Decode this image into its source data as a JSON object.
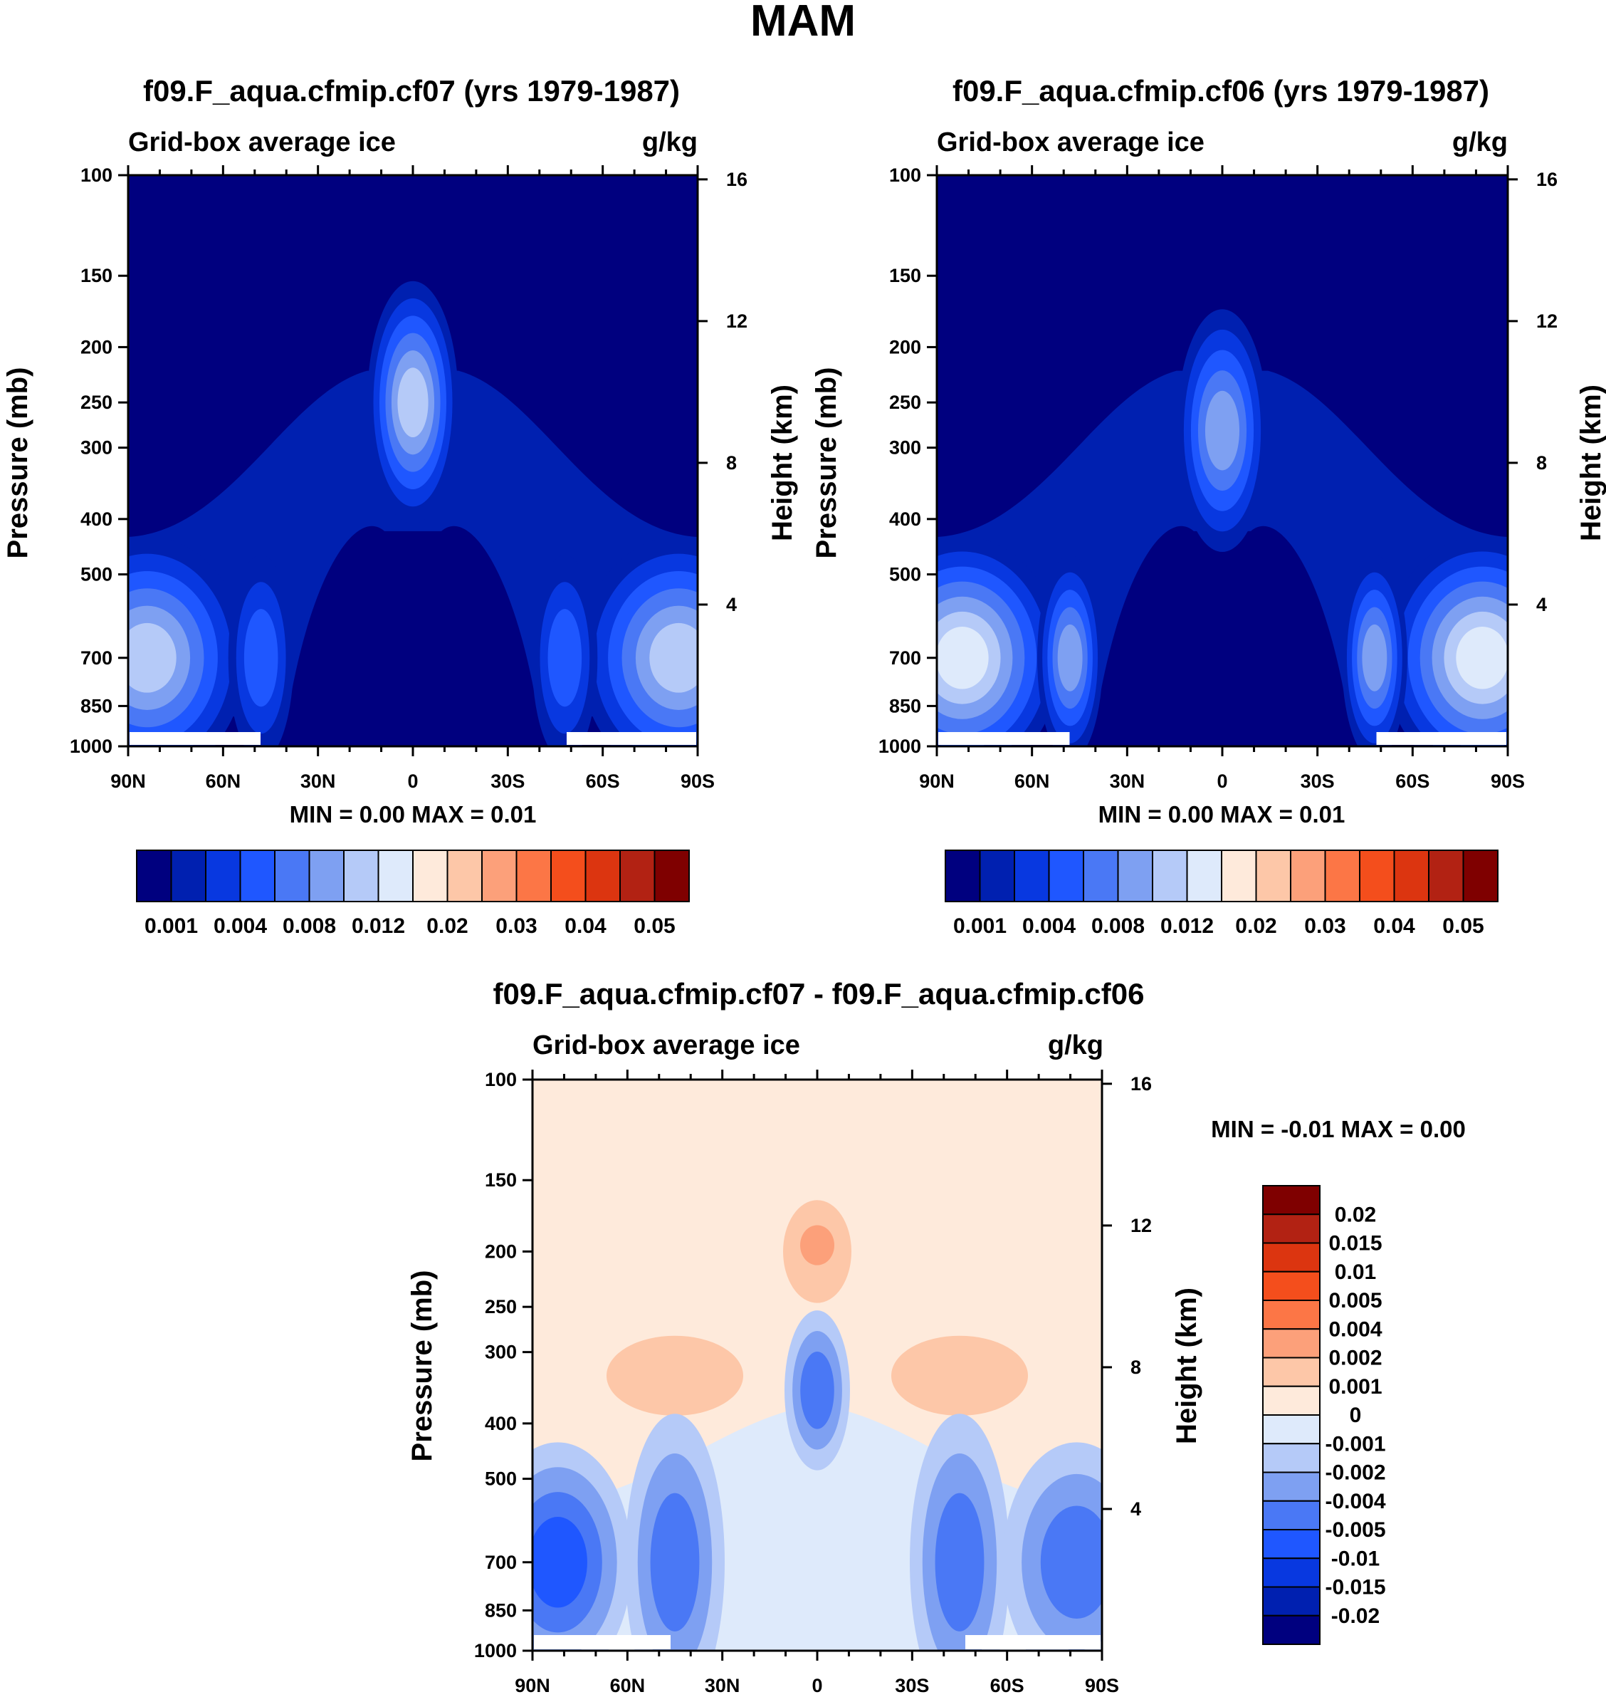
{
  "figure": {
    "title": "MAM",
    "colormap_main": [
      "#00007f",
      "#0020b0",
      "#0838e0",
      "#1f57ff",
      "#4a78f5",
      "#7ea0f2",
      "#b5caf8",
      "#deeafb",
      "#feeadb",
      "#fdc7a8",
      "#fca07a",
      "#fc7646",
      "#f44e1c",
      "#dc3510",
      "#b22213",
      "#7f0000"
    ],
    "colormap_diff": [
      "#00007f",
      "#0020b0",
      "#0838e0",
      "#1f57ff",
      "#4a78f5",
      "#7ea0f2",
      "#b5caf8",
      "#deeafb",
      "#feeadb",
      "#fdc7a8",
      "#fca07a",
      "#fc7646",
      "#f44e1c",
      "#dc3510",
      "#b22213",
      "#7f0000"
    ]
  },
  "chart_data": [
    {
      "type": "contour",
      "title": "f09.F_aqua.cfmip.cf07 (yrs 1979-1987)",
      "subtitle_left": "Grid-box average ice",
      "subtitle_right": "g/kg",
      "xlabel": "",
      "ylabel": "Pressure (mb)",
      "ylabel_right": "Height (km)",
      "x_ticks": [
        "90N",
        "60N",
        "30N",
        "0",
        "30S",
        "60S",
        "90S"
      ],
      "y_ticks": [
        "100",
        "150",
        "200",
        "250",
        "300",
        "400",
        "500",
        "700",
        "850",
        "1000"
      ],
      "y_ticks_right": [
        "16",
        "12",
        "8",
        "4"
      ],
      "min_max": "MIN =   0.00  MAX =   0.01",
      "colorbar_labels": [
        "0.001",
        "0.004",
        "0.008",
        "0.012",
        "0.02",
        "0.03",
        "0.04",
        "0.05"
      ],
      "max_level_index": 6,
      "centers": [
        {
          "lat": 0,
          "p": 250,
          "peak": 6
        },
        {
          "lat": 84,
          "p": 700,
          "peak": 6
        },
        {
          "lat": -84,
          "p": 700,
          "peak": 6
        },
        {
          "lat": 48,
          "p": 700,
          "peak": 3
        },
        {
          "lat": -48,
          "p": 700,
          "peak": 3
        }
      ]
    },
    {
      "type": "contour",
      "title": "f09.F_aqua.cfmip.cf06 (yrs 1979-1987)",
      "subtitle_left": "Grid-box average ice",
      "subtitle_right": "g/kg",
      "xlabel": "",
      "ylabel": "Pressure (mb)",
      "ylabel_right": "Height (km)",
      "x_ticks": [
        "90N",
        "60N",
        "30N",
        "0",
        "30S",
        "60S",
        "90S"
      ],
      "y_ticks": [
        "100",
        "150",
        "200",
        "250",
        "300",
        "400",
        "500",
        "700",
        "850",
        "1000"
      ],
      "y_ticks_right": [
        "16",
        "12",
        "8",
        "4"
      ],
      "min_max": "MIN =   0.00  MAX =   0.01",
      "colorbar_labels": [
        "0.001",
        "0.004",
        "0.008",
        "0.012",
        "0.02",
        "0.03",
        "0.04",
        "0.05"
      ],
      "max_level_index": 7,
      "centers": [
        {
          "lat": 0,
          "p": 280,
          "peak": 5
        },
        {
          "lat": 82,
          "p": 700,
          "peak": 7
        },
        {
          "lat": -82,
          "p": 700,
          "peak": 7
        },
        {
          "lat": 48,
          "p": 700,
          "peak": 5
        },
        {
          "lat": -48,
          "p": 700,
          "peak": 5
        }
      ]
    },
    {
      "type": "contour",
      "title": "f09.F_aqua.cfmip.cf07 - f09.F_aqua.cfmip.cf06",
      "subtitle_left": "Grid-box average ice",
      "subtitle_right": "g/kg",
      "xlabel": "",
      "ylabel": "Pressure (mb)",
      "ylabel_right": "Height (km)",
      "x_ticks": [
        "90N",
        "60N",
        "30N",
        "0",
        "30S",
        "60S",
        "90S"
      ],
      "y_ticks": [
        "100",
        "150",
        "200",
        "250",
        "300",
        "400",
        "500",
        "700",
        "850",
        "1000"
      ],
      "y_ticks_right": [
        "16",
        "12",
        "8",
        "4"
      ],
      "min_max": "MIN =  -0.01  MAX =   0.00",
      "colorbar_labels": [
        "0.02",
        "0.015",
        "0.01",
        "0.005",
        "0.004",
        "0.002",
        "0.001",
        "0",
        "-0.001",
        "-0.002",
        "-0.004",
        "-0.005",
        "-0.01",
        "-0.015",
        "-0.02"
      ],
      "centers": [
        {
          "lat": 0,
          "p": 200,
          "sign": "positive",
          "peak": 10
        },
        {
          "lat": 0,
          "p": 350,
          "sign": "negative",
          "peak": 3
        },
        {
          "lat": 45,
          "p": 700,
          "sign": "negative",
          "peak": 3
        },
        {
          "lat": -45,
          "p": 700,
          "sign": "negative",
          "peak": 3
        },
        {
          "lat": 82,
          "p": 700,
          "sign": "negative",
          "peak": 4
        }
      ]
    }
  ]
}
